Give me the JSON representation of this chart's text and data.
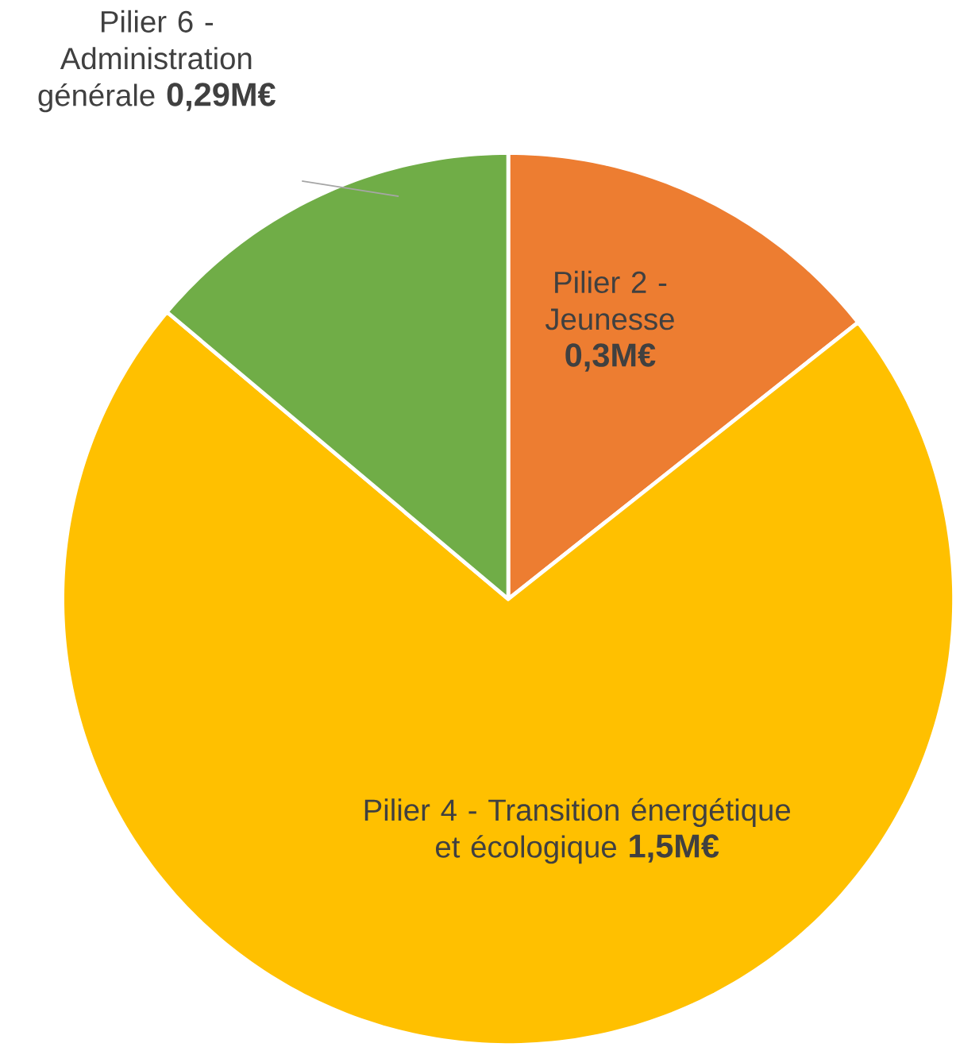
{
  "chart_data": {
    "type": "pie",
    "categories": [
      "Pilier 2 - Jeunesse",
      "Pilier 4 - Transition énergétique et écologique",
      "Pilier 6 - Administration générale"
    ],
    "values": [
      0.3,
      1.5,
      0.29
    ],
    "colors": [
      "#ed7d31",
      "#ffc000",
      "#70ad47"
    ],
    "value_labels": [
      "0,3M€",
      "1,5M€",
      "0,29M€"
    ]
  }
}
